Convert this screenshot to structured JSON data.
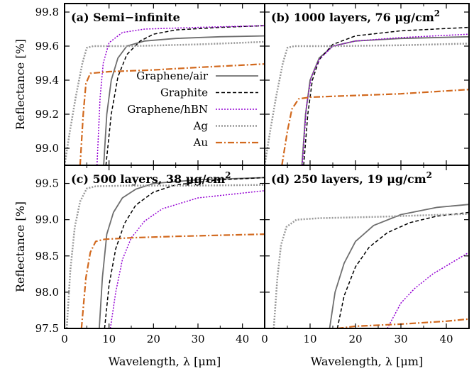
{
  "chart_data": [
    {
      "type": "line",
      "panel": "a",
      "title": "(a) Semi−infinite",
      "title_sup": "",
      "xlabel": "",
      "ylabel": "Reflectance [%]",
      "xlim": [
        0,
        45
      ],
      "ylim": [
        98.9,
        99.85
      ],
      "xticks": [],
      "yticks": [
        "99.0",
        "99.2",
        "99.4",
        "99.6",
        "99.8"
      ],
      "series": [
        {
          "name": "Graphene/air",
          "color": "#6e6e6e",
          "dash": "solid",
          "width": 1.8,
          "points": [
            [
              8.8,
              98.9
            ],
            [
              9.5,
              99.2
            ],
            [
              10.5,
              99.4
            ],
            [
              12,
              99.53
            ],
            [
              14,
              99.6
            ],
            [
              18,
              99.63
            ],
            [
              25,
              99.645
            ],
            [
              35,
              99.655
            ],
            [
              45,
              99.66
            ]
          ]
        },
        {
          "name": "Graphite",
          "color": "#000000",
          "dash": "5,3",
          "width": 1.5,
          "points": [
            [
              9.3,
              98.9
            ],
            [
              10.5,
              99.2
            ],
            [
              12,
              99.42
            ],
            [
              14,
              99.55
            ],
            [
              17,
              99.63
            ],
            [
              20,
              99.67
            ],
            [
              25,
              99.695
            ],
            [
              35,
              99.71
            ],
            [
              45,
              99.72
            ]
          ]
        },
        {
          "name": "Graphene/hBN",
          "color": "#9400d3",
          "dash": "2,2",
          "width": 1.5,
          "points": [
            [
              7.3,
              98.9
            ],
            [
              8,
              99.3
            ],
            [
              8.7,
              99.5
            ],
            [
              10,
              99.62
            ],
            [
              13,
              99.68
            ],
            [
              18,
              99.7
            ],
            [
              30,
              99.71
            ],
            [
              45,
              99.72
            ]
          ]
        },
        {
          "name": "Ag",
          "color": "#999999",
          "dash": "2,2",
          "width": 2.5,
          "points": [
            [
              0,
              98.9
            ],
            [
              1.2,
              99.1
            ],
            [
              2.5,
              99.3
            ],
            [
              4,
              99.5
            ],
            [
              5,
              99.59
            ],
            [
              6.5,
              99.6
            ],
            [
              15,
              99.6
            ],
            [
              30,
              99.61
            ],
            [
              45,
              99.625
            ]
          ]
        },
        {
          "name": "Au",
          "color": "#d2691e",
          "dash": "9,3,2,3",
          "width": 2.2,
          "points": [
            [
              3.5,
              98.9
            ],
            [
              4.2,
              99.2
            ],
            [
              4.8,
              99.38
            ],
            [
              5.8,
              99.44
            ],
            [
              10,
              99.45
            ],
            [
              20,
              99.46
            ],
            [
              30,
              99.475
            ],
            [
              45,
              99.495
            ]
          ]
        }
      ]
    },
    {
      "type": "line",
      "panel": "b",
      "title": "(b) 1000 layers, 76 μg/cm",
      "title_sup": "2",
      "xlabel": "",
      "ylabel": "",
      "xlim": [
        0,
        45
      ],
      "ylim": [
        98.9,
        99.85
      ],
      "xticks": [],
      "yticks": [],
      "series": [
        {
          "name": "Graphene/air",
          "color": "#6e6e6e",
          "dash": "solid",
          "width": 1.8,
          "points": [
            [
              8.2,
              98.9
            ],
            [
              9,
              99.2
            ],
            [
              10,
              99.4
            ],
            [
              12,
              99.53
            ],
            [
              15,
              99.6
            ],
            [
              20,
              99.63
            ],
            [
              30,
              99.645
            ],
            [
              45,
              99.655
            ]
          ]
        },
        {
          "name": "Graphite",
          "color": "#000000",
          "dash": "5,3",
          "width": 1.5,
          "points": [
            [
              8.6,
              98.9
            ],
            [
              9.5,
              99.2
            ],
            [
              10.5,
              99.4
            ],
            [
              12,
              99.52
            ],
            [
              15,
              99.61
            ],
            [
              20,
              99.66
            ],
            [
              30,
              99.69
            ],
            [
              45,
              99.71
            ]
          ]
        },
        {
          "name": "Graphene/hBN",
          "color": "#9400d3",
          "dash": "2,2",
          "width": 1.5,
          "points": [
            [
              8.3,
              98.9
            ],
            [
              9.2,
              99.25
            ],
            [
              10.3,
              99.42
            ],
            [
              12,
              99.52
            ],
            [
              15,
              99.6
            ],
            [
              20,
              99.63
            ],
            [
              30,
              99.65
            ],
            [
              45,
              99.67
            ]
          ]
        },
        {
          "name": "Ag",
          "color": "#999999",
          "dash": "2,2",
          "width": 2.5,
          "points": [
            [
              0,
              98.9
            ],
            [
              1.2,
              99.1
            ],
            [
              2.5,
              99.3
            ],
            [
              4,
              99.5
            ],
            [
              5,
              99.59
            ],
            [
              6.5,
              99.6
            ],
            [
              15,
              99.6
            ],
            [
              30,
              99.605
            ],
            [
              45,
              99.615
            ]
          ]
        },
        {
          "name": "Au",
          "color": "#d2691e",
          "dash": "9,3,2,3",
          "width": 2.2,
          "points": [
            [
              3.8,
              98.9
            ],
            [
              5,
              99.1
            ],
            [
              6,
              99.23
            ],
            [
              7.5,
              99.29
            ],
            [
              10,
              99.3
            ],
            [
              20,
              99.31
            ],
            [
              30,
              99.32
            ],
            [
              45,
              99.345
            ]
          ]
        }
      ]
    },
    {
      "type": "line",
      "panel": "c",
      "title": "(c) 500 layers, 38 μg/cm",
      "title_sup": "2",
      "xlabel": "Wavelength, λ [μm]",
      "ylabel": "Reflectance [%]",
      "xlim": [
        0,
        45
      ],
      "ylim": [
        97.5,
        99.75
      ],
      "xticks": [
        "0",
        "10",
        "20",
        "30",
        "40"
      ],
      "yticks": [
        "97.5",
        "98.0",
        "98.5",
        "99.0",
        "99.5"
      ],
      "series": [
        {
          "name": "Graphene/air",
          "color": "#6e6e6e",
          "dash": "solid",
          "width": 1.8,
          "points": [
            [
              7.8,
              97.5
            ],
            [
              8.5,
              98.2
            ],
            [
              9.5,
              98.8
            ],
            [
              11,
              99.1
            ],
            [
              13,
              99.3
            ],
            [
              16,
              99.42
            ],
            [
              20,
              99.5
            ],
            [
              30,
              99.55
            ],
            [
              45,
              99.58
            ]
          ]
        },
        {
          "name": "Graphite",
          "color": "#000000",
          "dash": "5,3",
          "width": 1.5,
          "points": [
            [
              9,
              97.5
            ],
            [
              10,
              98.1
            ],
            [
              11.5,
              98.6
            ],
            [
              13.5,
              98.95
            ],
            [
              16,
              99.2
            ],
            [
              20,
              99.38
            ],
            [
              25,
              99.48
            ],
            [
              35,
              99.55
            ],
            [
              45,
              99.58
            ]
          ]
        },
        {
          "name": "Graphene/hBN",
          "color": "#9400d3",
          "dash": "2,2",
          "width": 1.5,
          "points": [
            [
              10.3,
              97.5
            ],
            [
              11.5,
              98
            ],
            [
              13,
              98.45
            ],
            [
              15,
              98.75
            ],
            [
              18,
              98.98
            ],
            [
              22,
              99.15
            ],
            [
              30,
              99.3
            ],
            [
              45,
              99.4
            ]
          ]
        },
        {
          "name": "Ag",
          "color": "#999999",
          "dash": "2,2",
          "width": 2.5,
          "points": [
            [
              0.5,
              97.5
            ],
            [
              1.3,
              98.3
            ],
            [
              2.3,
              98.9
            ],
            [
              3.5,
              99.25
            ],
            [
              5,
              99.43
            ],
            [
              7,
              99.46
            ],
            [
              15,
              99.47
            ],
            [
              30,
              99.47
            ],
            [
              45,
              99.48
            ]
          ]
        },
        {
          "name": "Au",
          "color": "#d2691e",
          "dash": "9,3,2,3",
          "width": 2.2,
          "points": [
            [
              3.8,
              97.5
            ],
            [
              4.8,
              98.2
            ],
            [
              5.8,
              98.55
            ],
            [
              7,
              98.7
            ],
            [
              9,
              98.73
            ],
            [
              15,
              98.75
            ],
            [
              25,
              98.77
            ],
            [
              45,
              98.8
            ]
          ]
        }
      ]
    },
    {
      "type": "line",
      "panel": "d",
      "title": "(d) 250 layers, 19 μg/cm",
      "title_sup": "2",
      "xlabel": "Wavelength, λ [μm]",
      "ylabel": "",
      "xlim": [
        0,
        45
      ],
      "ylim": [
        97.5,
        99.75
      ],
      "xticks": [
        "0",
        "10",
        "20",
        "30",
        "40"
      ],
      "yticks": [],
      "series": [
        {
          "name": "Graphene/air",
          "color": "#6e6e6e",
          "dash": "solid",
          "width": 1.8,
          "points": [
            [
              14.3,
              97.5
            ],
            [
              15.5,
              98
            ],
            [
              17.5,
              98.4
            ],
            [
              20,
              98.7
            ],
            [
              24,
              98.92
            ],
            [
              30,
              99.07
            ],
            [
              38,
              99.17
            ],
            [
              45,
              99.21
            ]
          ]
        },
        {
          "name": "Graphite",
          "color": "#000000",
          "dash": "5,3",
          "width": 1.5,
          "points": [
            [
              16,
              97.5
            ],
            [
              17.5,
              97.95
            ],
            [
              20,
              98.35
            ],
            [
              23,
              98.62
            ],
            [
              27,
              98.82
            ],
            [
              32,
              98.96
            ],
            [
              38,
              99.05
            ],
            [
              45,
              99.1
            ]
          ]
        },
        {
          "name": "Graphene/hBN",
          "color": "#9400d3",
          "dash": "2,2",
          "width": 1.5,
          "points": [
            [
              27,
              97.5
            ],
            [
              30,
              97.85
            ],
            [
              33,
              98.05
            ],
            [
              37,
              98.25
            ],
            [
              41,
              98.4
            ],
            [
              45,
              98.55
            ]
          ]
        },
        {
          "name": "Ag",
          "color": "#999999",
          "dash": "2,2",
          "width": 2.5,
          "points": [
            [
              2,
              97.5
            ],
            [
              2.8,
              98.2
            ],
            [
              3.6,
              98.65
            ],
            [
              4.8,
              98.9
            ],
            [
              7,
              99
            ],
            [
              12,
              99.02
            ],
            [
              25,
              99.04
            ],
            [
              45,
              99.08
            ]
          ]
        },
        {
          "name": "Au",
          "color": "#d2691e",
          "dash": "9,3,2,3",
          "width": 2.2,
          "points": [
            [
              16,
              97.5
            ],
            [
              20,
              97.53
            ],
            [
              30,
              97.56
            ],
            [
              40,
              97.6
            ],
            [
              45,
              97.63
            ]
          ]
        }
      ]
    }
  ],
  "legend": {
    "placement": "panel (a), lower right",
    "entries": [
      {
        "name": "Graphene/air",
        "color": "#6e6e6e",
        "dash": "solid",
        "width": 1.8
      },
      {
        "name": "Graphite",
        "color": "#000000",
        "dash": "5,3",
        "width": 1.5
      },
      {
        "name": "Graphene/hBN",
        "color": "#9400d3",
        "dash": "2,2",
        "width": 1.5
      },
      {
        "name": "Ag",
        "color": "#999999",
        "dash": "2,2",
        "width": 2.5
      },
      {
        "name": "Au",
        "color": "#d2691e",
        "dash": "9,3,2,3",
        "width": 2.2
      }
    ]
  }
}
